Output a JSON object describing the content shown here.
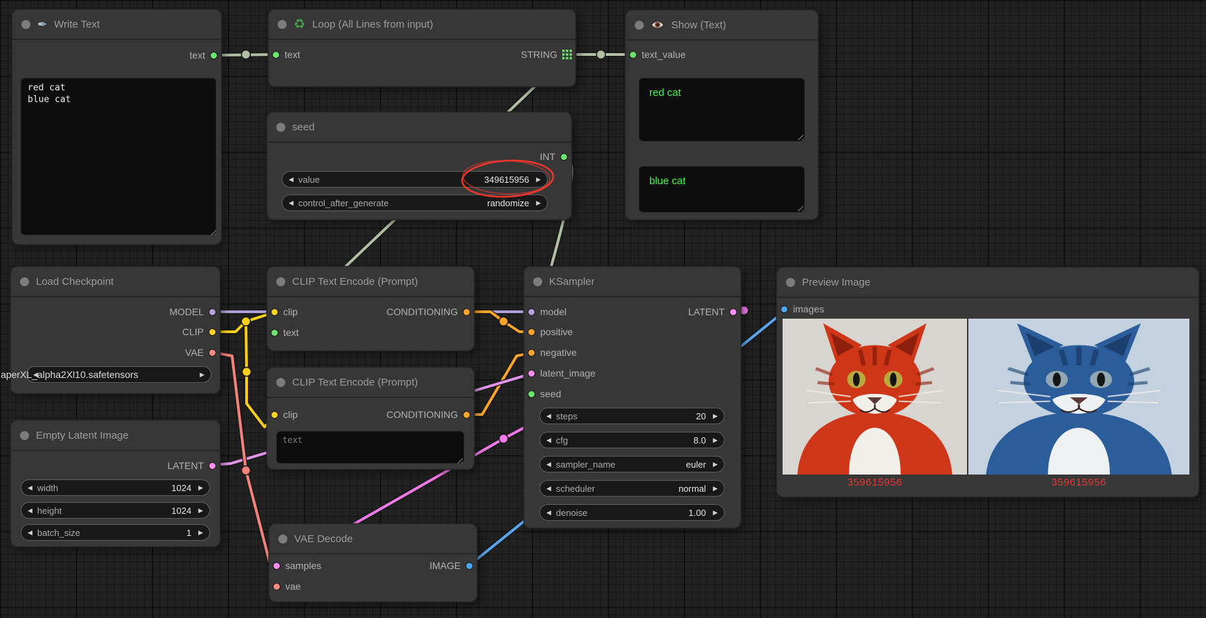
{
  "app": {
    "name": "ComfyUI graph canvas"
  },
  "colors": {
    "port_string": "#6be56b",
    "port_model": "#b7a0e0",
    "port_clip": "#ffd21e",
    "port_vae": "#ff8a80",
    "port_conditioning": "#ffa62b",
    "port_latent": "#ff8df2",
    "port_image": "#4aa8f0",
    "link_string": "#b2bfa3",
    "link_model": "#b0a0d5",
    "link_clip": "#f7cf1b",
    "link_vae": "#f2837b",
    "link_conditioning": "#f7a529",
    "link_latent": "#e095e8",
    "link_latent_out": "#f07ae8",
    "link_image": "#5ba5ec",
    "annotation_red": "#e8372c",
    "show_text_green": "#3dfc3d",
    "image_label_red": "#e53935",
    "widget_bg": "#181818",
    "node_bg": "#373737",
    "canvas_bg": "#212121"
  },
  "icons": {
    "left_arrow": "◀",
    "right_arrow": "▶",
    "pen": "✒",
    "recycle": "♻"
  },
  "nodes": {
    "write_text": {
      "title": "Write Text",
      "output_label": "text",
      "content": "red cat\nblue cat"
    },
    "loop": {
      "title": "Loop (All Lines from input)",
      "input_label": "text",
      "output_label": "STRING"
    },
    "show_text": {
      "title": "Show (Text)",
      "input_label": "text_value",
      "values": [
        "red cat",
        "blue cat"
      ]
    },
    "seed": {
      "title": "seed",
      "output_label": "INT",
      "widgets": [
        {
          "label": "value",
          "value": "349615956"
        },
        {
          "label": "control_after_generate",
          "value": "randomize"
        }
      ]
    },
    "load_checkpoint": {
      "title": "Load Checkpoint",
      "outputs": [
        "MODEL",
        "CLIP",
        "VAE"
      ],
      "ckpt_name": "aperXL_alpha2Xl10.safetensors"
    },
    "clip_encode_1": {
      "title": "CLIP Text Encode (Prompt)",
      "inputs": [
        "clip",
        "text"
      ],
      "output_label": "CONDITIONING"
    },
    "clip_encode_2": {
      "title": "CLIP Text Encode (Prompt)",
      "inputs": [
        "clip"
      ],
      "output_label": "CONDITIONING",
      "textarea_placeholder": "text"
    },
    "empty_latent": {
      "title": "Empty Latent Image",
      "output_label": "LATENT",
      "widgets": [
        {
          "label": "width",
          "value": "1024"
        },
        {
          "label": "height",
          "value": "1024"
        },
        {
          "label": "batch_size",
          "value": "1"
        }
      ]
    },
    "ksampler": {
      "title": "KSampler",
      "inputs": [
        "model",
        "positive",
        "negative",
        "latent_image",
        "seed"
      ],
      "output_label": "LATENT",
      "widgets": [
        {
          "label": "steps",
          "value": "20"
        },
        {
          "label": "cfg",
          "value": "8.0"
        },
        {
          "label": "sampler_name",
          "value": "euler"
        },
        {
          "label": "scheduler",
          "value": "normal"
        },
        {
          "label": "denoise",
          "value": "1.00"
        }
      ]
    },
    "vae_decode": {
      "title": "VAE Decode",
      "inputs": [
        "samples",
        "vae"
      ],
      "output_label": "IMAGE"
    },
    "preview": {
      "title": "Preview Image",
      "input_label": "images",
      "images": [
        {
          "subject": "red cat",
          "label": "359615956",
          "bg": "#d8d5d0",
          "fur": "#cf3617",
          "stripe": "#8e1f0c",
          "eye": "#b9a83e",
          "chest": "#f2efe9"
        },
        {
          "subject": "blue cat",
          "label": "359615956",
          "bg": "#c3d2de",
          "fur": "#2b5d9b",
          "stripe": "#1b3f6e",
          "eye": "#93a7b3",
          "chest": "#eef1f2"
        }
      ]
    }
  }
}
